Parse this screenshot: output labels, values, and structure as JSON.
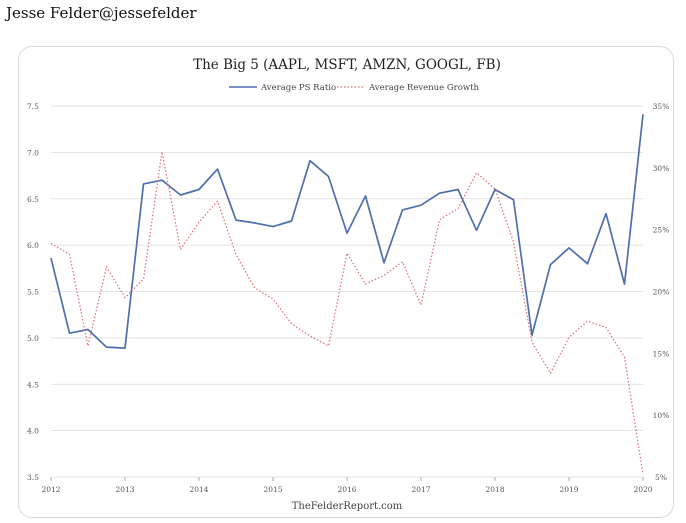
{
  "tweet": {
    "author": "Jesse Felder@jessefelder"
  },
  "chart_data": {
    "type": "line",
    "title": "The Big 5 (AAPL, MSFT, AMZN, GOOGL, FB)",
    "source": "TheFelderReport.com",
    "legend_position": "top-center",
    "grid": true,
    "xlim": [
      2012,
      2020
    ],
    "x_ticks": [
      "2012",
      "2013",
      "2014",
      "2015",
      "2016",
      "2017",
      "2018",
      "2019",
      "2020"
    ],
    "left_axis": {
      "ylim": [
        3.5,
        7.5
      ],
      "ticks": [
        "3.5",
        "4.0",
        "4.5",
        "5.0",
        "5.5",
        "6.0",
        "6.5",
        "7.0",
        "7.5"
      ]
    },
    "right_axis": {
      "ylim": [
        5,
        35
      ],
      "ticks": [
        "5%",
        "10%",
        "15%",
        "20%",
        "25%",
        "30%",
        "35%"
      ]
    },
    "series": [
      {
        "name": "Average PS Ratio",
        "axis": "left",
        "color": "#4e6fad",
        "style": "solid",
        "x": [
          2012.0,
          2012.25,
          2012.5,
          2012.75,
          2013.0,
          2013.25,
          2013.5,
          2013.75,
          2014.0,
          2014.25,
          2014.5,
          2014.75,
          2015.0,
          2015.25,
          2015.5,
          2015.75,
          2016.0,
          2016.25,
          2016.5,
          2016.75,
          2017.0,
          2017.25,
          2017.5,
          2017.75,
          2018.0,
          2018.25,
          2018.5,
          2018.75,
          2019.0,
          2019.25,
          2019.5,
          2019.75,
          2020.0
        ],
        "values": [
          5.86,
          5.05,
          5.09,
          4.9,
          4.89,
          6.66,
          6.7,
          6.54,
          6.6,
          6.82,
          6.27,
          6.24,
          6.2,
          6.26,
          6.91,
          6.74,
          6.13,
          6.53,
          5.81,
          6.38,
          6.43,
          6.56,
          6.6,
          6.16,
          6.6,
          6.49,
          5.03,
          5.79,
          5.97,
          5.8,
          6.34,
          5.58,
          7.41
        ]
      },
      {
        "name": "Average Revenue Growth",
        "axis": "right",
        "color": "#e06b72",
        "style": "dotted",
        "x": [
          2012.0,
          2012.25,
          2012.5,
          2012.75,
          2013.0,
          2013.25,
          2013.5,
          2013.75,
          2014.0,
          2014.25,
          2014.5,
          2014.75,
          2015.0,
          2015.25,
          2015.5,
          2015.75,
          2016.0,
          2016.25,
          2016.5,
          2016.75,
          2017.0,
          2017.25,
          2017.5,
          2017.75,
          2018.0,
          2018.25,
          2018.5,
          2018.75,
          2019.0,
          2019.25,
          2019.5,
          2019.75,
          2020.0
        ],
        "values": [
          23.9,
          23.0,
          15.6,
          22.0,
          19.5,
          21.0,
          31.3,
          23.4,
          25.6,
          27.3,
          23.0,
          20.3,
          19.4,
          17.4,
          16.4,
          15.6,
          23.1,
          20.6,
          21.3,
          22.4,
          18.9,
          25.8,
          26.7,
          29.6,
          28.3,
          24.0,
          15.9,
          13.4,
          16.3,
          17.6,
          17.1,
          14.7,
          5.2
        ]
      }
    ]
  }
}
